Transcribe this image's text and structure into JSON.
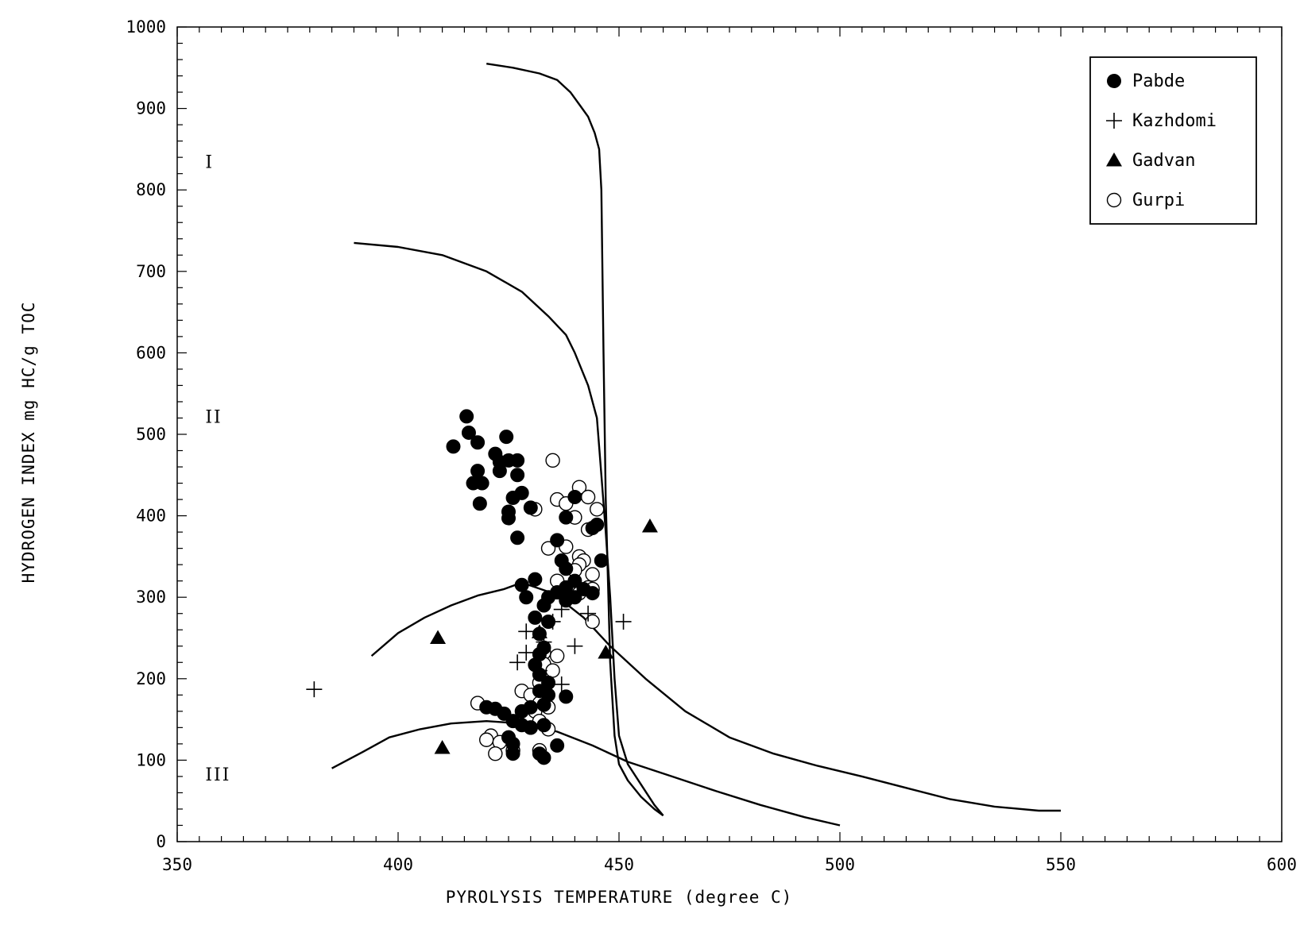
{
  "chart_data": {
    "type": "scatter",
    "title": "",
    "xlabel": "PYROLYSIS TEMPERATURE   (degree C)",
    "ylabel": "HYDROGEN INDEX   mg HC/g TOC",
    "xlim": [
      350,
      600
    ],
    "ylim": [
      0,
      1000
    ],
    "x_ticks": [
      350,
      400,
      450,
      500,
      550,
      600
    ],
    "y_ticks": [
      0,
      100,
      200,
      300,
      400,
      500,
      600,
      700,
      800,
      900,
      1000
    ],
    "grid": false,
    "legend_position": "top-right",
    "zone_labels": [
      {
        "text": "I",
        "x": 356,
        "y": 835
      },
      {
        "text": "II",
        "x": 356,
        "y": 522
      },
      {
        "text": "III",
        "x": 356,
        "y": 83
      }
    ],
    "reference_curves": [
      {
        "id": "type-I-boundary",
        "points": [
          [
            420,
            955
          ],
          [
            426,
            950
          ],
          [
            432,
            943
          ],
          [
            436,
            935
          ],
          [
            439,
            920
          ],
          [
            441,
            905
          ],
          [
            443,
            890
          ],
          [
            444.5,
            870
          ],
          [
            445.5,
            850
          ],
          [
            446,
            800
          ],
          [
            446.5,
            600
          ],
          [
            447,
            420
          ],
          [
            448,
            220
          ],
          [
            449,
            130
          ],
          [
            450,
            95
          ],
          [
            452,
            75
          ],
          [
            455,
            55
          ],
          [
            458,
            40
          ],
          [
            460,
            32
          ]
        ]
      },
      {
        "id": "type-I-II-boundary",
        "points": [
          [
            390,
            735
          ],
          [
            400,
            730
          ],
          [
            410,
            720
          ],
          [
            420,
            700
          ],
          [
            428,
            675
          ],
          [
            434,
            645
          ],
          [
            438,
            622
          ],
          [
            440,
            600
          ],
          [
            443,
            560
          ],
          [
            445,
            520
          ],
          [
            446,
            450
          ],
          [
            447,
            380
          ],
          [
            448,
            300
          ],
          [
            449,
            200
          ],
          [
            450,
            130
          ],
          [
            452,
            95
          ],
          [
            455,
            70
          ],
          [
            458,
            45
          ],
          [
            460,
            32
          ]
        ]
      },
      {
        "id": "type-II-III-boundary",
        "points": [
          [
            394,
            228
          ],
          [
            400,
            256
          ],
          [
            406,
            275
          ],
          [
            412,
            290
          ],
          [
            418,
            302
          ],
          [
            424,
            310
          ],
          [
            428,
            318
          ],
          [
            435,
            305
          ],
          [
            442,
            275
          ],
          [
            448,
            240
          ],
          [
            456,
            200
          ],
          [
            465,
            160
          ],
          [
            475,
            128
          ],
          [
            485,
            108
          ],
          [
            495,
            93
          ],
          [
            505,
            80
          ],
          [
            515,
            66
          ],
          [
            525,
            52
          ],
          [
            535,
            43
          ],
          [
            545,
            38
          ],
          [
            550,
            38
          ]
        ]
      },
      {
        "id": "type-III-boundary",
        "points": [
          [
            385,
            90
          ],
          [
            392,
            110
          ],
          [
            398,
            128
          ],
          [
            405,
            138
          ],
          [
            412,
            145
          ],
          [
            420,
            148
          ],
          [
            428,
            145
          ],
          [
            436,
            135
          ],
          [
            444,
            118
          ],
          [
            452,
            98
          ],
          [
            462,
            80
          ],
          [
            472,
            62
          ],
          [
            482,
            45
          ],
          [
            492,
            30
          ],
          [
            500,
            20
          ]
        ]
      }
    ],
    "series": [
      {
        "name": "Pabde",
        "marker": "filled-circle",
        "points": [
          [
            415.5,
            522
          ],
          [
            416,
            502
          ],
          [
            418,
            490
          ],
          [
            412.5,
            485
          ],
          [
            424.5,
            497
          ],
          [
            422,
            476
          ],
          [
            423,
            466
          ],
          [
            425,
            468
          ],
          [
            427,
            468
          ],
          [
            423,
            455
          ],
          [
            427,
            450
          ],
          [
            418,
            455
          ],
          [
            419,
            440
          ],
          [
            417,
            440
          ],
          [
            428,
            428
          ],
          [
            426,
            422
          ],
          [
            425,
            405
          ],
          [
            425,
            397
          ],
          [
            418.5,
            415
          ],
          [
            430,
            410
          ],
          [
            427,
            373
          ],
          [
            440,
            423
          ],
          [
            445,
            389
          ],
          [
            444,
            385
          ],
          [
            438,
            398
          ],
          [
            436,
            370
          ],
          [
            437,
            345
          ],
          [
            438,
            335
          ],
          [
            446,
            345
          ],
          [
            440,
            320
          ],
          [
            438,
            312
          ],
          [
            442,
            310
          ],
          [
            444,
            305
          ],
          [
            440,
            300
          ],
          [
            438,
            296
          ],
          [
            436,
            306
          ],
          [
            434,
            300
          ],
          [
            431,
            322
          ],
          [
            428,
            315
          ],
          [
            429,
            300
          ],
          [
            433,
            290
          ],
          [
            434,
            270
          ],
          [
            431,
            275
          ],
          [
            432,
            255
          ],
          [
            433,
            238
          ],
          [
            432,
            230
          ],
          [
            431,
            217
          ],
          [
            432,
            205
          ],
          [
            434,
            195
          ],
          [
            432,
            185
          ],
          [
            434,
            180
          ],
          [
            438,
            178
          ],
          [
            433,
            168
          ],
          [
            430,
            165
          ],
          [
            428,
            160
          ],
          [
            424,
            157
          ],
          [
            422,
            163
          ],
          [
            420,
            165
          ],
          [
            426,
            148
          ],
          [
            428,
            143
          ],
          [
            430,
            140
          ],
          [
            433,
            143
          ],
          [
            425,
            128
          ],
          [
            426,
            120
          ],
          [
            426,
            108
          ],
          [
            433,
            103
          ],
          [
            432,
            108
          ],
          [
            436,
            118
          ]
        ]
      },
      {
        "name": "Kazhdomi",
        "marker": "plus",
        "points": [
          [
            381,
            187
          ],
          [
            451,
            270
          ],
          [
            443,
            280
          ],
          [
            437,
            285
          ],
          [
            435,
            270
          ],
          [
            429,
            258
          ],
          [
            433,
            245
          ],
          [
            440,
            240
          ],
          [
            429,
            232
          ],
          [
            427,
            220
          ],
          [
            432,
            210
          ],
          [
            437,
            193
          ]
        ]
      },
      {
        "name": "Gadvan",
        "marker": "filled-triangle",
        "points": [
          [
            409,
            250
          ],
          [
            457,
            387
          ],
          [
            432,
            257
          ],
          [
            447,
            232
          ],
          [
            410,
            115
          ]
        ]
      },
      {
        "name": "Gurpi",
        "marker": "open-circle",
        "points": [
          [
            435,
            468
          ],
          [
            441,
            435
          ],
          [
            443,
            423
          ],
          [
            436,
            420
          ],
          [
            438,
            415
          ],
          [
            431,
            408
          ],
          [
            445,
            408
          ],
          [
            440,
            398
          ],
          [
            443,
            383
          ],
          [
            434,
            360
          ],
          [
            438,
            362
          ],
          [
            441,
            350
          ],
          [
            442,
            345
          ],
          [
            441,
            340
          ],
          [
            440,
            333
          ],
          [
            444,
            328
          ],
          [
            436,
            320
          ],
          [
            443,
            312
          ],
          [
            444,
            310
          ],
          [
            441,
            305
          ],
          [
            444,
            270
          ],
          [
            433,
            232
          ],
          [
            436,
            228
          ],
          [
            433,
            218
          ],
          [
            435,
            210
          ],
          [
            432,
            195
          ],
          [
            428,
            185
          ],
          [
            430,
            180
          ],
          [
            433,
            175
          ],
          [
            432,
            170
          ],
          [
            434,
            165
          ],
          [
            431,
            160
          ],
          [
            418,
            170
          ],
          [
            432,
            148
          ],
          [
            434,
            138
          ],
          [
            430,
            140
          ],
          [
            421,
            130
          ],
          [
            420,
            125
          ],
          [
            423,
            122
          ],
          [
            426,
            112
          ],
          [
            422,
            108
          ],
          [
            432,
            112
          ]
        ]
      }
    ],
    "legend": [
      {
        "label": "Pabde",
        "marker": "filled-circle"
      },
      {
        "label": "Kazhdomi",
        "marker": "plus"
      },
      {
        "label": "Gadvan",
        "marker": "filled-triangle"
      },
      {
        "label": "Gurpi",
        "marker": "open-circle"
      }
    ],
    "colors": {
      "ink": "#000000",
      "background": "#ffffff"
    }
  }
}
